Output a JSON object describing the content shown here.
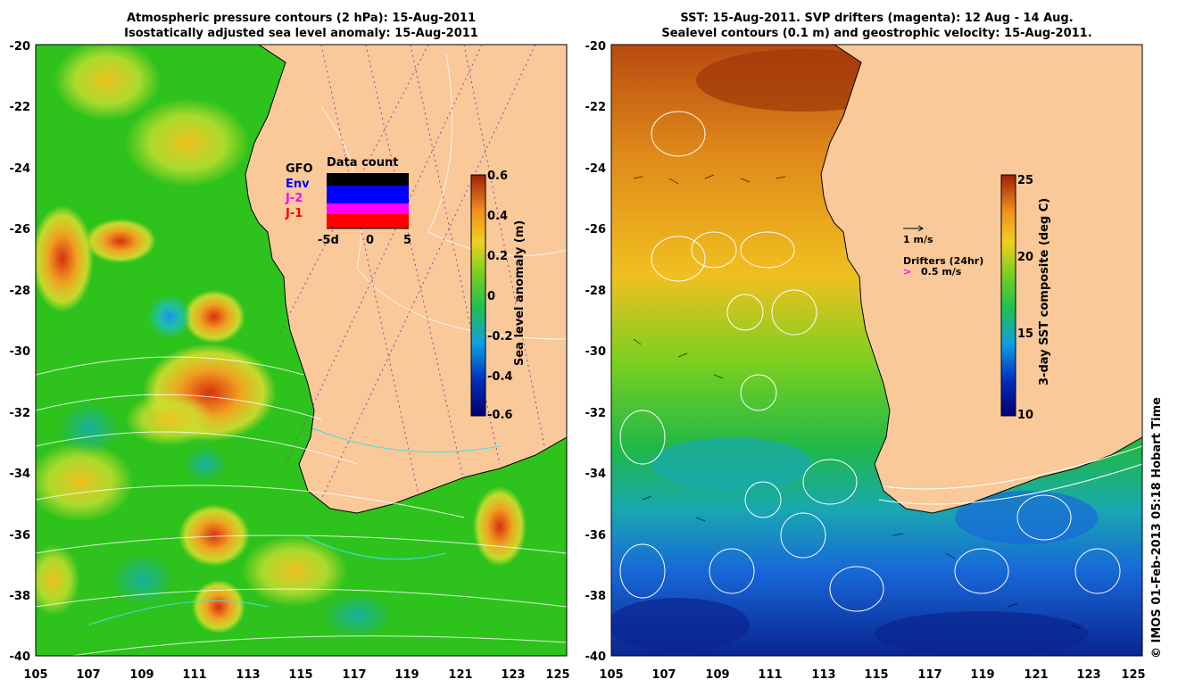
{
  "left_panel": {
    "title_line1": "Atmospheric pressure contours (2 hPa): 15-Aug-2011",
    "title_line2": "Isostatically adjusted sea level anomaly: 15-Aug-2011",
    "colorbar_label": "Sea level anomaly (m)",
    "colorbar_ticks": [
      "0.6",
      "0.4",
      "0.2",
      "0",
      "-0.2",
      "-0.4",
      "-0.6"
    ],
    "data_count": {
      "title": "Data count",
      "legend": [
        "GFO",
        "Env",
        "J-2",
        "J-1"
      ],
      "legend_colors": [
        "#000000",
        "#0000ff",
        "#ff00ff",
        "#ff0000"
      ],
      "x_ticks": [
        "-5d",
        "0",
        "5"
      ]
    }
  },
  "right_panel": {
    "title_line1": "SST: 15-Aug-2011. SVP drifters (magenta): 12 Aug - 14 Aug.",
    "title_line2": "Sealevel contours (0.1 m) and geostrophic velocity: 15-Aug-2011.",
    "colorbar_label": "3-day SST composite (deg C)",
    "colorbar_ticks": [
      "25",
      "20",
      "15",
      "10"
    ],
    "velocity_scale_label": "1 m/s",
    "drifters_label": "Drifters (24hr)",
    "drifter_scale_label": "0.5 m/s"
  },
  "axes": {
    "y_ticks": [
      "-20",
      "-22",
      "-24",
      "-26",
      "-28",
      "-30",
      "-32",
      "-34",
      "-36",
      "-38",
      "-40"
    ],
    "x_ticks": [
      "105",
      "107",
      "109",
      "111",
      "113",
      "115",
      "117",
      "119",
      "121",
      "123",
      "125"
    ]
  },
  "credit": "© IMOS 01-Feb-2013 05:18 Hobart Time",
  "colors": {
    "land": "#f9c99a",
    "ocean_mid": "#22c21a",
    "anomaly_high": "#c03010",
    "sst_warm": "#c05010",
    "sst_cold": "#0a2a9a"
  }
}
